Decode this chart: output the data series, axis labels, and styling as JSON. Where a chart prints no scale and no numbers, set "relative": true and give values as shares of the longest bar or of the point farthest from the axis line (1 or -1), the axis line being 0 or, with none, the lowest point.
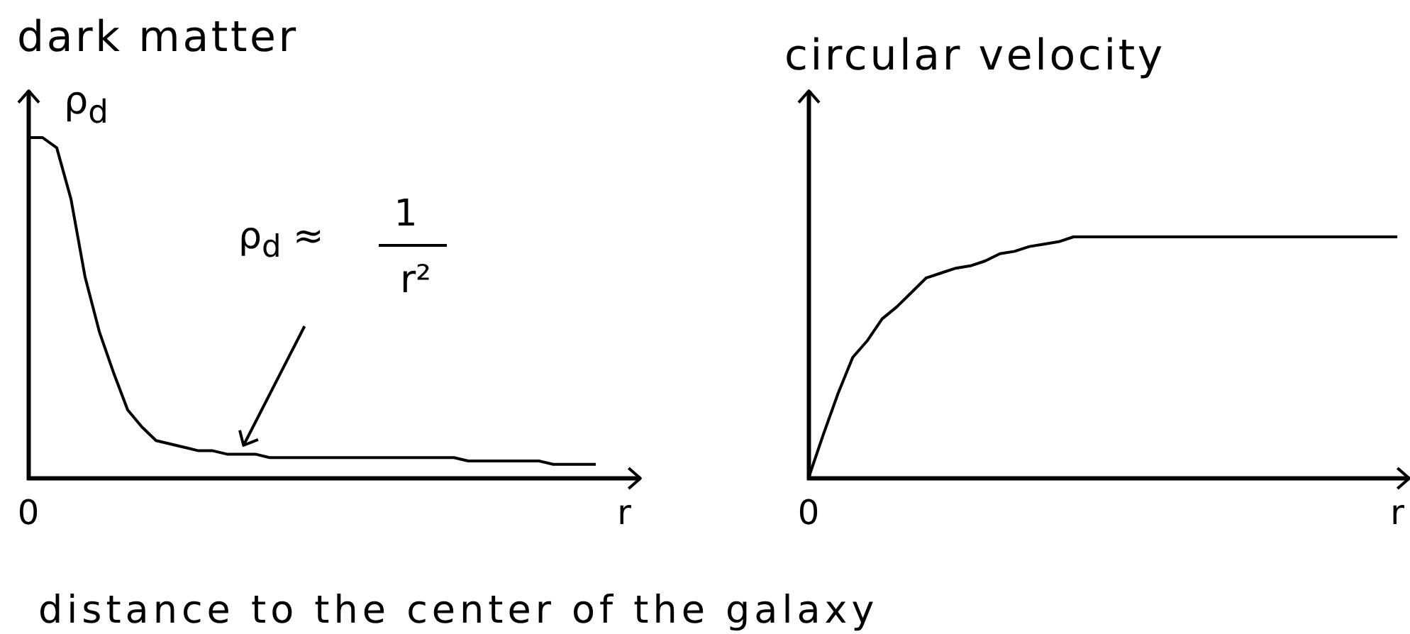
{
  "chart_data": [
    {
      "type": "line",
      "title": "dark matter",
      "ylabel": "ρ$_{d}$",
      "relative": true,
      "categories": [
        "0",
        null,
        null,
        null,
        null,
        null,
        null,
        null,
        null,
        null,
        null,
        null,
        null,
        null,
        null,
        null,
        null,
        null,
        null,
        null,
        null,
        null,
        null,
        null,
        null,
        null,
        null,
        null,
        null,
        null,
        null,
        null,
        null,
        null,
        null,
        null,
        null,
        null,
        null,
        null,
        null,
        null,
        "r"
      ],
      "series": [
        {
          "color": "#000000",
          "values": [
            1,
            1,
            0.97,
            0.82,
            0.59,
            0.43,
            0.31,
            0.2,
            0.15,
            0.11,
            0.1,
            0.09,
            0.08,
            0.08,
            0.07,
            0.07,
            0.07,
            0.06,
            0.06,
            0.06,
            0.06,
            0.06,
            0.06,
            0.06,
            0.06,
            0.06,
            0.06,
            0.06,
            0.06,
            0.06,
            0.06,
            0.05,
            0.05,
            0.05,
            0.05,
            0.05,
            0.05,
            0.04,
            0.04,
            0.04,
            0.04,
            null,
            null
          ]
        }
      ],
      "annotations": [
        "ρ$_{d}$ ≈",
        "1",
        "r²",
        "distance to the center of the galaxy"
      ]
    },
    {
      "type": "line",
      "title": "circular velocity",
      "relative": true,
      "categories": [
        "0",
        null,
        null,
        null,
        null,
        null,
        null,
        null,
        null,
        null,
        null,
        null,
        null,
        null,
        null,
        null,
        null,
        null,
        null,
        null,
        null,
        null,
        null,
        null,
        null,
        null,
        null,
        null,
        null,
        null,
        null,
        null,
        null,
        null,
        null,
        null,
        null,
        null,
        null,
        null,
        "r"
      ],
      "series": [
        {
          "color": "#000000",
          "values": [
            0,
            0.18,
            0.35,
            0.5,
            0.57,
            0.66,
            0.71,
            0.77,
            0.83,
            0.85,
            0.87,
            0.88,
            0.9,
            0.93,
            0.94,
            0.96,
            0.97,
            0.98,
            1,
            1,
            1,
            1,
            1,
            1,
            1,
            1,
            1,
            1,
            1,
            1,
            1,
            1,
            1,
            1,
            1,
            1,
            1,
            1,
            1,
            1,
            1
          ]
        }
      ]
    }
  ]
}
